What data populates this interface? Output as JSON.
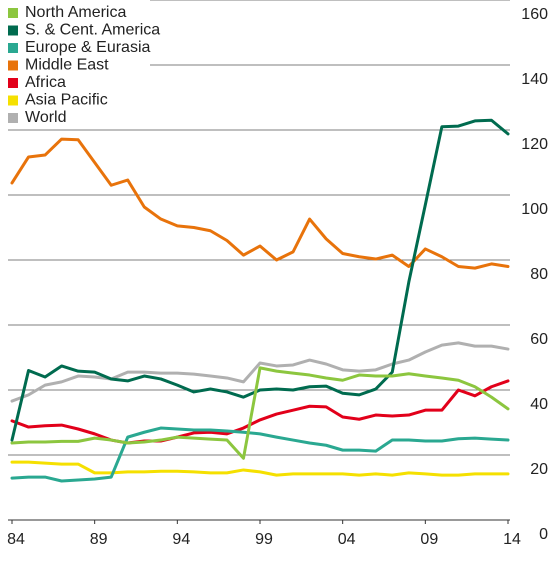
{
  "chart_data": {
    "type": "line",
    "x": [
      1984,
      1985,
      1986,
      1987,
      1988,
      1989,
      1990,
      1991,
      1992,
      1993,
      1994,
      1995,
      1996,
      1997,
      1998,
      1999,
      2000,
      2001,
      2002,
      2003,
      2004,
      2005,
      2006,
      2007,
      2008,
      2009,
      2010,
      2011,
      2012,
      2013,
      2014
    ],
    "xlim": [
      1984,
      2014
    ],
    "xticks": [
      {
        "value": 1984,
        "label": "84"
      },
      {
        "value": 1989,
        "label": "89"
      },
      {
        "value": 1994,
        "label": "94"
      },
      {
        "value": 1999,
        "label": "99"
      },
      {
        "value": 2004,
        "label": "04"
      },
      {
        "value": 2009,
        "label": "09"
      },
      {
        "value": 2014,
        "label": "14"
      }
    ],
    "ylim": [
      0,
      160
    ],
    "yticks": [
      0,
      20,
      40,
      60,
      80,
      100,
      120,
      140,
      160
    ],
    "grid": true,
    "legend": "top-left",
    "series": [
      {
        "name": "North America",
        "color": "#8cc63f",
        "values": [
          23.7,
          24,
          24,
          24.2,
          24.2,
          25.2,
          24.6,
          23.7,
          24,
          24.6,
          25.5,
          25.2,
          24.9,
          24.6,
          19,
          46.8,
          45.8,
          45.2,
          44.6,
          43.7,
          43,
          44.6,
          44.3,
          44.3,
          45,
          44.3,
          43.7,
          43,
          41,
          37.8,
          34.2
        ]
      },
      {
        "name": "S. & Cent. America",
        "color": "#006b4f",
        "values": [
          24.6,
          46,
          44,
          47.4,
          45.8,
          45.5,
          43.4,
          42.8,
          44.3,
          43.4,
          41.5,
          39.4,
          40.3,
          39.4,
          37.8,
          40,
          40.3,
          40,
          41,
          41.2,
          39,
          38.5,
          40.3,
          45.5,
          73.2,
          97,
          121,
          121.2,
          122.8,
          123,
          118.8
        ]
      },
      {
        "name": "Europe & Eurasia",
        "color": "#2aa891",
        "values": [
          12.9,
          13.2,
          13.2,
          12,
          12.3,
          12.6,
          13.2,
          25.5,
          27,
          28.3,
          28,
          27.7,
          27.7,
          27.4,
          27,
          26.5,
          25.5,
          24.6,
          23.7,
          23,
          21.5,
          21.5,
          21.2,
          24.6,
          24.6,
          24.3,
          24.3,
          25,
          25.2,
          24.9,
          24.6
        ]
      },
      {
        "name": "Middle East",
        "color": "#e8730b",
        "values": [
          103.7,
          111.7,
          112.3,
          117.2,
          117,
          110,
          103,
          104.6,
          96.3,
          92.6,
          90.5,
          90,
          89,
          86,
          81.5,
          84.3,
          80,
          82.5,
          92.6,
          86.5,
          82,
          81,
          80.3,
          81.5,
          78,
          83.4,
          81,
          78,
          77.5,
          78.8,
          78
        ]
      },
      {
        "name": "Africa",
        "color": "#e2001a",
        "values": [
          30.5,
          28.6,
          29,
          29.2,
          28,
          26.5,
          24.6,
          23.7,
          24.3,
          24.3,
          25.5,
          26.8,
          27,
          26.5,
          28.3,
          30.8,
          32.6,
          33.8,
          35,
          34.8,
          31.7,
          31,
          32.3,
          32,
          32.3,
          33.8,
          33.8,
          40,
          38.2,
          41,
          42.8
        ]
      },
      {
        "name": "Asia Pacific",
        "color": "#f5e000",
        "values": [
          17.8,
          17.8,
          17.5,
          17.2,
          17.2,
          14.5,
          14.5,
          14.8,
          14.8,
          15,
          15,
          14.8,
          14.5,
          14.5,
          15.4,
          14.8,
          13.8,
          14.2,
          14.2,
          14.2,
          14.2,
          13.8,
          14.2,
          13.8,
          14.5,
          14.2,
          13.8,
          13.8,
          14.2,
          14.2,
          14.2
        ]
      },
      {
        "name": "World",
        "color": "#b0b0b0",
        "values": [
          36.6,
          38.5,
          41.5,
          42.5,
          44.3,
          44,
          43.4,
          45.5,
          45.5,
          45.2,
          45.2,
          44.9,
          44.3,
          43.7,
          42.5,
          48.3,
          47.4,
          47.7,
          49.2,
          48,
          46.2,
          45.8,
          46.2,
          48,
          49.2,
          51.7,
          53.8,
          54.5,
          53.5,
          53.5,
          52.6
        ]
      }
    ]
  }
}
